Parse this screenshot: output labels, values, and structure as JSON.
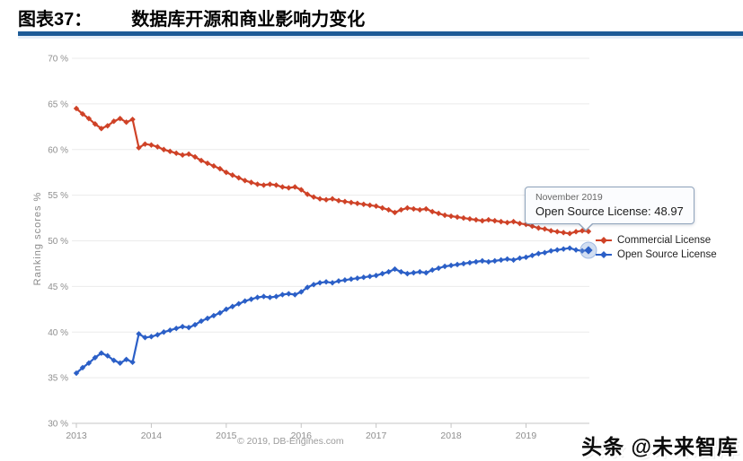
{
  "header": {
    "figure_label": "图表37：",
    "title": "数据库开源和商业影响力变化",
    "rule_color": "#1d5b97"
  },
  "watermark": "头条 @未来智库",
  "chart_data": {
    "type": "line",
    "title": "",
    "xlabel": "",
    "ylabel": "Ranking scores %",
    "ylim": [
      30,
      70
    ],
    "grid": true,
    "legend_position": "right-middle",
    "x_interval": "monthly",
    "x_start": "2013-01",
    "x_end": "2019-11",
    "ytick_values": [
      70,
      65,
      60,
      55,
      50,
      45,
      40,
      35,
      30
    ],
    "ytick_labels": [
      "70 %",
      "65 %",
      "60 %",
      "55 %",
      "50 %",
      "45 %",
      "40 %",
      "35 %",
      "30 %"
    ],
    "xtick_labels": [
      "2013",
      "2014",
      "2015",
      "2016",
      "2017",
      "2018",
      "2019"
    ],
    "copyright": "© 2019, DB-Engines.com",
    "series": [
      {
        "name": "Commercial License",
        "color": "#cf4227",
        "values": [
          64.5,
          63.9,
          63.4,
          62.8,
          62.3,
          62.6,
          63.1,
          63.4,
          63.0,
          63.3,
          60.2,
          60.6,
          60.5,
          60.3,
          60.0,
          59.8,
          59.6,
          59.4,
          59.5,
          59.2,
          58.8,
          58.5,
          58.2,
          57.9,
          57.5,
          57.2,
          56.9,
          56.6,
          56.4,
          56.2,
          56.1,
          56.2,
          56.1,
          55.9,
          55.8,
          55.9,
          55.6,
          55.1,
          54.8,
          54.6,
          54.5,
          54.6,
          54.4,
          54.3,
          54.2,
          54.1,
          54.0,
          53.9,
          53.8,
          53.6,
          53.4,
          53.1,
          53.4,
          53.6,
          53.5,
          53.4,
          53.5,
          53.2,
          53.0,
          52.8,
          52.7,
          52.6,
          52.5,
          52.4,
          52.3,
          52.2,
          52.3,
          52.2,
          52.1,
          52.0,
          52.1,
          51.9,
          51.8,
          51.6,
          51.4,
          51.3,
          51.1,
          51.0,
          50.9,
          50.8,
          51.0,
          51.1,
          51.03
        ]
      },
      {
        "name": "Open Source License",
        "color": "#2b5fc7",
        "values": [
          35.5,
          36.1,
          36.6,
          37.2,
          37.7,
          37.4,
          36.9,
          36.6,
          37.0,
          36.7,
          39.8,
          39.4,
          39.5,
          39.7,
          40.0,
          40.2,
          40.4,
          40.6,
          40.5,
          40.8,
          41.2,
          41.5,
          41.8,
          42.1,
          42.5,
          42.8,
          43.1,
          43.4,
          43.6,
          43.8,
          43.9,
          43.8,
          43.9,
          44.1,
          44.2,
          44.1,
          44.4,
          44.9,
          45.2,
          45.4,
          45.5,
          45.4,
          45.6,
          45.7,
          45.8,
          45.9,
          46.0,
          46.1,
          46.2,
          46.4,
          46.6,
          46.9,
          46.6,
          46.4,
          46.5,
          46.6,
          46.5,
          46.8,
          47.0,
          47.2,
          47.3,
          47.4,
          47.5,
          47.6,
          47.7,
          47.8,
          47.7,
          47.8,
          47.9,
          48.0,
          47.9,
          48.1,
          48.2,
          48.4,
          48.6,
          48.7,
          48.9,
          49.0,
          49.1,
          49.2,
          49.0,
          48.9,
          48.97
        ]
      }
    ],
    "tooltip": {
      "title": "November 2019",
      "text": "Open Source License: 48.97",
      "highlight_series": "Open Source License",
      "highlight_value": 48.97
    }
  }
}
